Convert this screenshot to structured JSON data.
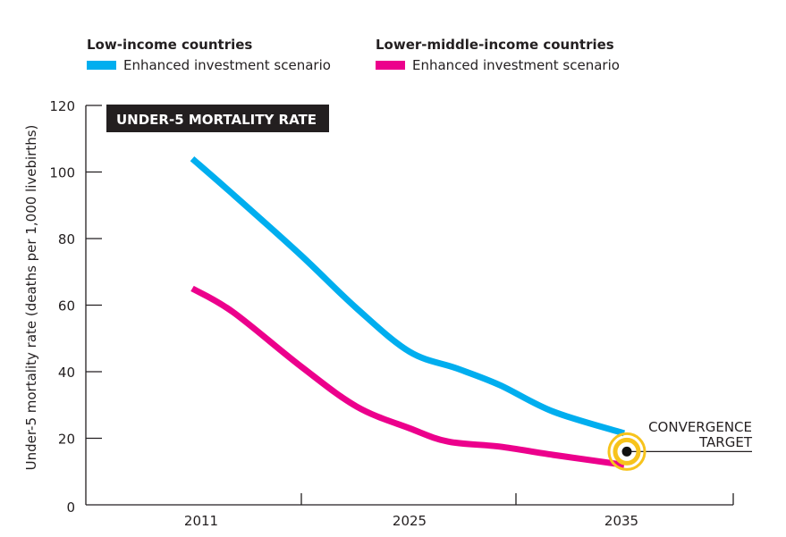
{
  "legend": {
    "groups": [
      {
        "title": "Low-income countries",
        "item": "Enhanced investment scenario",
        "color": "#00aeef"
      },
      {
        "title": "Lower-middle-income countries",
        "item": "Enhanced investment scenario",
        "color": "#ec008c"
      }
    ]
  },
  "chart_data": {
    "type": "line",
    "title": "UNDER-5 MORTALITY RATE",
    "xlabel": "",
    "ylabel": "Under-5 mortality rate (deaths per 1,000 livebirths)",
    "ylim": [
      0,
      120
    ],
    "yticks": [
      "0",
      "20",
      "40",
      "60",
      "80",
      "100",
      "120"
    ],
    "xticks": [
      "2011",
      "2025",
      "2035"
    ],
    "grid": false,
    "legend_position": "top",
    "series": [
      {
        "name": "Low-income countries – Enhanced investment scenario",
        "color": "#00aeef",
        "x": [
          2011,
          2013.7,
          2018,
          2021.6,
          2025,
          2027.2,
          2029.2,
          2031.7,
          2035
        ],
        "y": [
          104,
          93,
          75,
          59,
          46,
          41,
          36,
          28,
          21.5
        ]
      },
      {
        "name": "Lower-middle-income countries – Enhanced investment scenario",
        "color": "#ec008c",
        "x": [
          2011,
          2013.6,
          2018,
          2021.6,
          2025,
          2026.8,
          2029.2,
          2031.7,
          2035
        ],
        "y": [
          65,
          58,
          41.6,
          29.5,
          23,
          19,
          17.5,
          15,
          12
        ]
      }
    ],
    "annotation": {
      "text_line1": "CONVERGENCE",
      "text_line2": "TARGET",
      "x": 2035,
      "y": 16,
      "color": "#f7c31c"
    }
  }
}
